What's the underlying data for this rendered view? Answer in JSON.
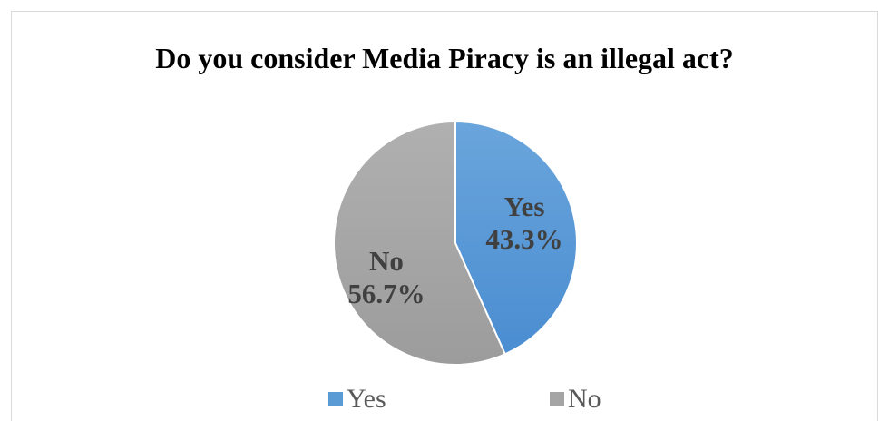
{
  "chart_data": {
    "type": "pie",
    "title": "Do you consider Media Piracy is an illegal act?",
    "categories": [
      "Yes",
      "No"
    ],
    "values": [
      43.3,
      56.7
    ],
    "data_labels": [
      {
        "name": "Yes",
        "value": "43.3%"
      },
      {
        "name": "No",
        "value": "56.7%"
      }
    ],
    "colors": [
      "#5B9BD5",
      "#A5A5A5"
    ],
    "legend": {
      "placement": "bottom",
      "entries": [
        "Yes",
        "No"
      ]
    }
  }
}
